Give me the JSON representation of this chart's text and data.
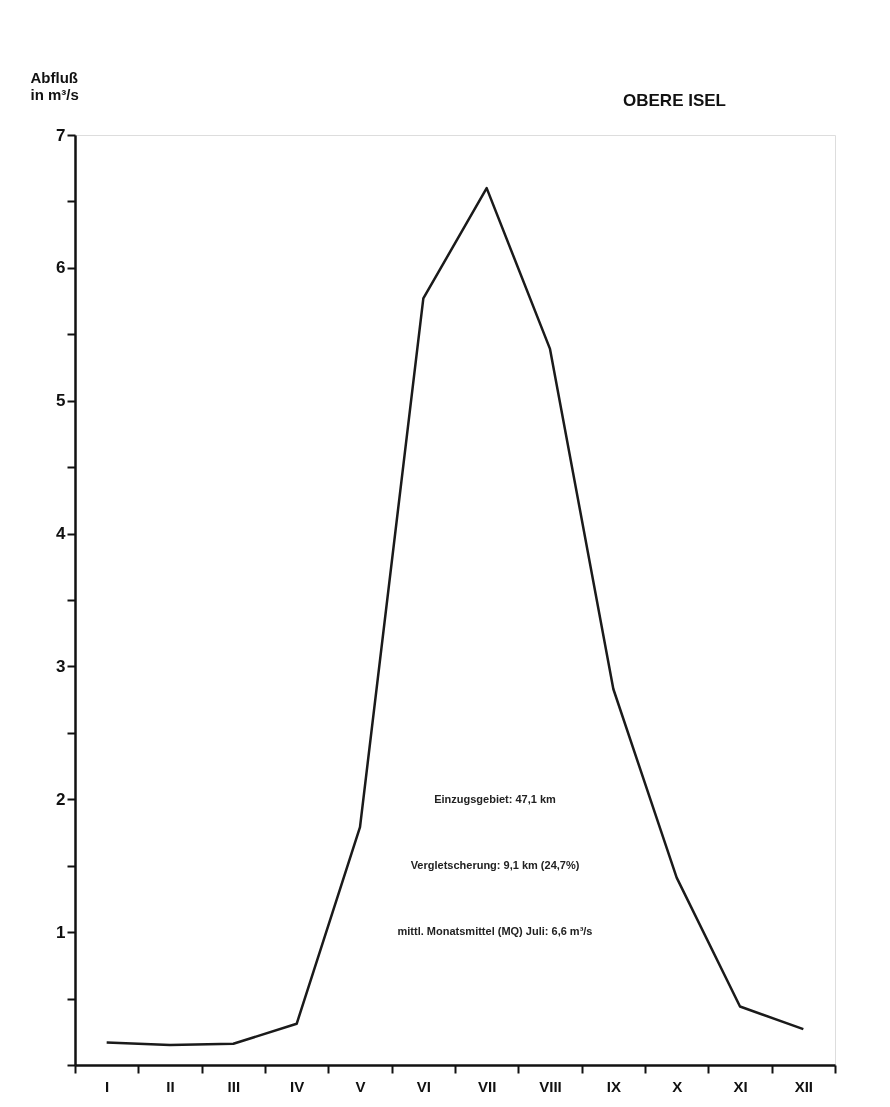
{
  "chart_data": {
    "type": "line",
    "title": "OBERE ISEL",
    "ylabel": "Abfluß\nin m³/s",
    "categories": [
      "I",
      "II",
      "III",
      "IV",
      "V",
      "VI",
      "VII",
      "VIII",
      "IX",
      "X",
      "XI",
      "XII"
    ],
    "series": [
      {
        "color": "#1a1a1a",
        "values": [
          0.17,
          0.15,
          0.16,
          0.31,
          1.79,
          5.77,
          6.6,
          5.39,
          2.83,
          1.41,
          0.44,
          0.27
        ]
      }
    ],
    "ylim": [
      0,
      7
    ],
    "yticks": [
      {
        "value": 0,
        "label": null
      },
      {
        "value": 0.5,
        "label": null
      },
      1,
      {
        "value": 1.5,
        "label": null
      },
      2,
      {
        "value": 2.5,
        "label": null
      },
      3,
      {
        "value": 3.5,
        "label": null
      },
      4,
      {
        "value": 4.5,
        "label": null
      },
      5,
      {
        "value": 5.5,
        "label": null
      },
      6,
      {
        "value": 6.5,
        "label": null
      },
      7
    ],
    "grid": false,
    "marker": "none",
    "line_style": "solid",
    "annotations": [
      "Einzugsgebiet: 47,1 km",
      "Vergletscherung: 9,1 km (24,7%)",
      "mittl. Monatsmittel (MQ) Juli: 6,6 m³/s"
    ]
  }
}
